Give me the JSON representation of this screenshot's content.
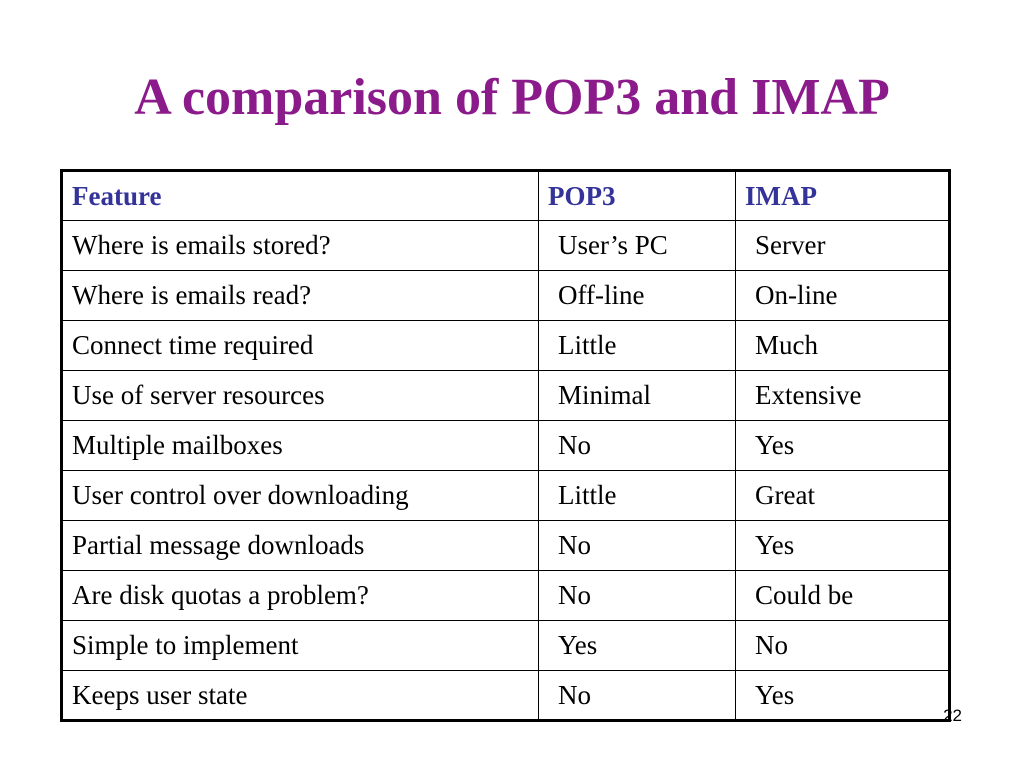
{
  "slide": {
    "title": "A comparison of POP3 and IMAP",
    "page_number": "22"
  },
  "colors": {
    "title": "#8B1A8B",
    "header_text": "#333399",
    "body_text": "#000000"
  },
  "table": {
    "headers": [
      "Feature",
      "POP3",
      "IMAP"
    ],
    "rows": [
      [
        "Where is emails stored?",
        "User’s PC",
        "Server"
      ],
      [
        "Where is emails read?",
        "Off-line",
        "On-line"
      ],
      [
        "Connect time required",
        "Little",
        "Much"
      ],
      [
        "Use of server resources",
        "Minimal",
        "Extensive"
      ],
      [
        "Multiple mailboxes",
        "No",
        "Yes"
      ],
      [
        "User control over downloading",
        "Little",
        "Great"
      ],
      [
        "Partial message downloads",
        "No",
        "Yes"
      ],
      [
        "Are disk quotas a problem?",
        "No",
        "Could be"
      ],
      [
        "Simple to implement",
        "Yes",
        "No"
      ],
      [
        "Keeps user state",
        "No",
        "Yes"
      ]
    ]
  }
}
